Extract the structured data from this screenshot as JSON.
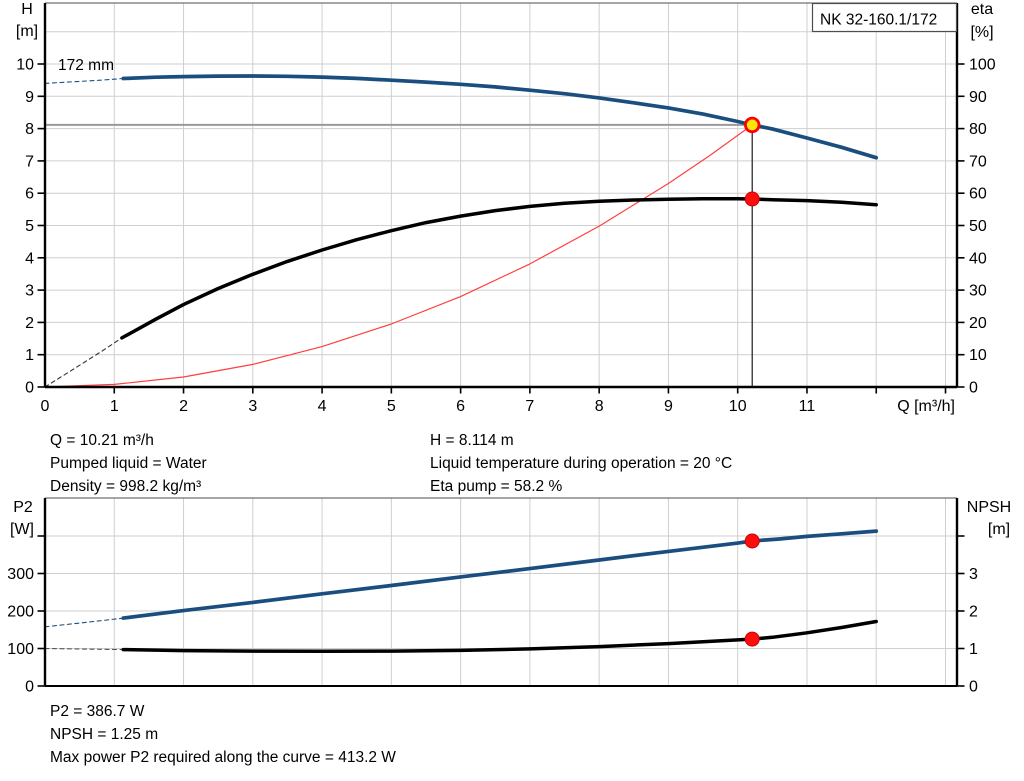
{
  "title_box": "NK 32-160.1/172",
  "colors": {
    "curve_blue": "#1A4E7E",
    "curve_black": "#000000",
    "system_red": "#FF3F3F",
    "marker_red": "#FF0D0D",
    "marker_red_edge": "#CC0000",
    "marker_yellow": "#FFE60A",
    "marker_ring": "#FF0000",
    "grid": "#CFCFCF",
    "duty_h_line": "#9A9A9A",
    "duty_v_line": "#3B3B3B",
    "axis": "#000000",
    "frame": "#4D4D4D",
    "dash_black": "#333333"
  },
  "info_top": {
    "q": "Q = 10.21 m³/h",
    "liquid": "Pumped liquid = Water",
    "density": "Density = 998.2 kg/m³",
    "h": "H = 8.114 m",
    "temperature": "Liquid temperature during operation = 20 °C",
    "eta": "Eta pump = 58.2 %"
  },
  "info_bottom": {
    "p2": "P2 = 386.7 W",
    "npsh": "NPSH = 1.25 m",
    "max_power": "Max power P2 required along the curve = 413.2 W"
  },
  "chart_data": [
    {
      "type": "line",
      "name": "QH and efficiency curves",
      "impeller_label": "172 mm",
      "xlabel": "Q [m³/h]",
      "ylabel_left_1": "H",
      "ylabel_left_2": "[m]",
      "ylabel_right_1": "eta",
      "ylabel_right_2": "[%]",
      "xlim": [
        0,
        13.16
      ],
      "ylim_left": [
        0,
        11.9
      ],
      "ylim_right": [
        0,
        119
      ],
      "xtick_labels": [
        0,
        1,
        2,
        3,
        4,
        5,
        6,
        7,
        8,
        9,
        10,
        11
      ],
      "xtick_marks": [
        1,
        2,
        3,
        4,
        5,
        6,
        7,
        8,
        9,
        10,
        11,
        12,
        13
      ],
      "ytick_left_labels": [
        0,
        1,
        2,
        3,
        4,
        5,
        6,
        7,
        8,
        9,
        10
      ],
      "ytick_right_labels": [
        0,
        10,
        20,
        30,
        40,
        50,
        60,
        70,
        80,
        90,
        100
      ],
      "grid_x": [
        1,
        2,
        3,
        4,
        5,
        6,
        7,
        8,
        9,
        10,
        11,
        12,
        13
      ],
      "grid_y": [
        1,
        2,
        3,
        4,
        5,
        6,
        7,
        8,
        9,
        10,
        11
      ],
      "duty_point": {
        "q": 10.21,
        "h": 8.114,
        "eta": 58.2
      },
      "series": [
        {
          "name": "head-curve-dashed",
          "axis": "H",
          "points": [
            [
              0,
              9.4
            ],
            [
              0.4,
              9.45
            ],
            [
              0.8,
              9.5
            ],
            [
              1.13,
              9.55
            ]
          ]
        },
        {
          "name": "head-curve",
          "axis": "H",
          "points": [
            [
              1.13,
              9.55
            ],
            [
              1.6,
              9.59
            ],
            [
              2,
              9.61
            ],
            [
              2.5,
              9.625
            ],
            [
              3,
              9.63
            ],
            [
              3.5,
              9.62
            ],
            [
              4,
              9.595
            ],
            [
              4.5,
              9.555
            ],
            [
              5,
              9.5
            ],
            [
              5.5,
              9.44
            ],
            [
              6,
              9.37
            ],
            [
              6.5,
              9.29
            ],
            [
              7,
              9.19
            ],
            [
              7.5,
              9.08
            ],
            [
              8,
              8.95
            ],
            [
              8.5,
              8.8
            ],
            [
              9,
              8.64
            ],
            [
              9.5,
              8.45
            ],
            [
              10,
              8.22
            ],
            [
              10.21,
              8.114
            ],
            [
              10.5,
              7.99
            ],
            [
              11,
              7.71
            ],
            [
              11.5,
              7.42
            ],
            [
              12,
              7.1
            ]
          ]
        },
        {
          "name": "efficiency-curve-dashed",
          "axis": "eta",
          "points": [
            [
              0,
              0
            ],
            [
              0.4,
              5.4
            ],
            [
              0.8,
              10.8
            ],
            [
              1.11,
              15.2
            ]
          ]
        },
        {
          "name": "efficiency-curve",
          "axis": "eta",
          "points": [
            [
              1.11,
              15.2
            ],
            [
              1.6,
              21.0
            ],
            [
              2,
              25.5
            ],
            [
              2.5,
              30.5
            ],
            [
              3,
              34.9
            ],
            [
              3.5,
              38.9
            ],
            [
              4,
              42.4
            ],
            [
              4.5,
              45.6
            ],
            [
              5,
              48.4
            ],
            [
              5.5,
              50.9
            ],
            [
              6,
              52.9
            ],
            [
              6.5,
              54.6
            ],
            [
              7,
              55.9
            ],
            [
              7.5,
              56.9
            ],
            [
              8,
              57.5
            ],
            [
              8.5,
              57.9
            ],
            [
              9,
              58.1
            ],
            [
              9.5,
              58.3
            ],
            [
              10,
              58.3
            ],
            [
              10.21,
              58.2
            ],
            [
              10.5,
              58.0
            ],
            [
              11,
              57.7
            ],
            [
              11.5,
              57.2
            ],
            [
              12,
              56.4
            ]
          ]
        },
        {
          "name": "system-curve",
          "axis": "H",
          "points": [
            [
              0,
              0
            ],
            [
              1,
              0.08
            ],
            [
              2,
              0.31
            ],
            [
              3,
              0.7
            ],
            [
              4,
              1.25
            ],
            [
              5,
              1.95
            ],
            [
              6,
              2.8
            ],
            [
              7,
              3.81
            ],
            [
              8,
              4.98
            ],
            [
              9,
              6.3
            ],
            [
              9.6,
              7.17
            ],
            [
              10.21,
              8.114
            ]
          ]
        }
      ]
    },
    {
      "type": "line",
      "name": "Power and NPSH curves",
      "ylabel_left_1": "P2",
      "ylabel_left_2": "[W]",
      "ylabel_right_1": "NPSH",
      "ylabel_right_2": "[m]",
      "xlim": [
        0,
        13.16
      ],
      "ylim_left": [
        0,
        509
      ],
      "ylim_right": [
        0,
        5.09
      ],
      "ytick_left_labels": [
        0,
        100,
        200,
        300
      ],
      "ytick_left_marks": [
        0,
        100,
        200,
        300,
        400
      ],
      "ytick_right_labels": [
        0,
        1,
        2,
        3
      ],
      "ytick_right_marks": [
        0,
        1,
        2,
        3,
        4
      ],
      "grid_x": [
        1,
        2,
        3,
        4,
        5,
        6,
        7,
        8,
        9,
        10,
        11,
        12,
        13
      ],
      "grid_y": [
        100,
        200,
        300,
        400
      ],
      "duty_point": {
        "q": 10.21,
        "p2": 386.7,
        "npsh": 1.25
      },
      "series": [
        {
          "name": "power-curve-dashed",
          "axis": "P2",
          "points": [
            [
              0,
              158
            ],
            [
              0.6,
              170
            ],
            [
              1.13,
              181
            ]
          ]
        },
        {
          "name": "power-curve",
          "axis": "P2",
          "points": [
            [
              1.13,
              181
            ],
            [
              2,
              201
            ],
            [
              3,
              223
            ],
            [
              4,
              246
            ],
            [
              5,
              268
            ],
            [
              6,
              291
            ],
            [
              7,
              313
            ],
            [
              8,
              336
            ],
            [
              9,
              359
            ],
            [
              10,
              381
            ],
            [
              10.21,
              386.7
            ],
            [
              10.6,
              392
            ],
            [
              11,
              399
            ],
            [
              11.5,
              406
            ],
            [
              12,
              413.2
            ]
          ]
        },
        {
          "name": "npsh-curve-dashed",
          "axis": "NPSH",
          "points": [
            [
              0,
              1.0
            ],
            [
              0.6,
              0.985
            ],
            [
              1.13,
              0.97
            ]
          ]
        },
        {
          "name": "npsh-curve",
          "axis": "NPSH",
          "points": [
            [
              1.13,
              0.97
            ],
            [
              2,
              0.945
            ],
            [
              3,
              0.93
            ],
            [
              4,
              0.925
            ],
            [
              5,
              0.93
            ],
            [
              6,
              0.95
            ],
            [
              7,
              0.99
            ],
            [
              8,
              1.05
            ],
            [
              9,
              1.13
            ],
            [
              10,
              1.23
            ],
            [
              10.21,
              1.25
            ],
            [
              10.5,
              1.3
            ],
            [
              11,
              1.42
            ],
            [
              11.5,
              1.56
            ],
            [
              12,
              1.72
            ]
          ]
        }
      ]
    }
  ]
}
